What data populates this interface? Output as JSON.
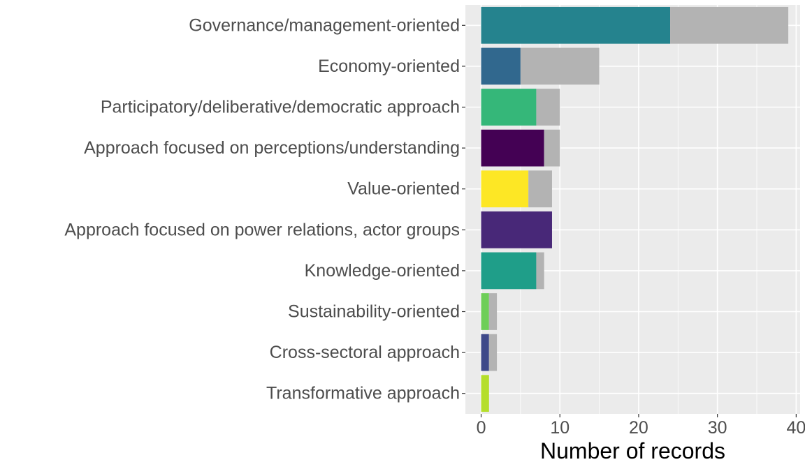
{
  "chart_data": {
    "type": "bar",
    "orientation": "horizontal",
    "stacked": true,
    "categories": [
      "Governance/management-oriented",
      "Economy-oriented",
      "Participatory/deliberative/democratic approach",
      "Approach focused on perceptions/understanding",
      "Value-oriented",
      "Approach focused on power relations, actor groups",
      "Knowledge-oriented",
      "Sustainability-oriented",
      "Cross-sectoral approach",
      "Transformative approach"
    ],
    "series": [
      {
        "values": [
          24,
          5,
          7,
          8,
          6,
          9,
          7,
          1,
          1,
          1
        ],
        "colors": [
          "#25838e",
          "#31688e",
          "#35b779",
          "#440154",
          "#fde725",
          "#482878",
          "#1f9e89",
          "#6ece58",
          "#3e4989",
          "#b5de2b"
        ]
      },
      {
        "values": [
          15,
          10,
          3,
          2,
          3,
          0,
          1,
          1,
          1,
          0
        ],
        "color": "#b3b3b3"
      }
    ],
    "title": "",
    "xlabel": "Number of records",
    "ylabel": "",
    "xlim": [
      -2,
      40.5
    ],
    "xticks": [
      0,
      10,
      20,
      30,
      40
    ],
    "grid": true,
    "panel_background": "#ebebeb",
    "grid_color": "#ffffff"
  }
}
